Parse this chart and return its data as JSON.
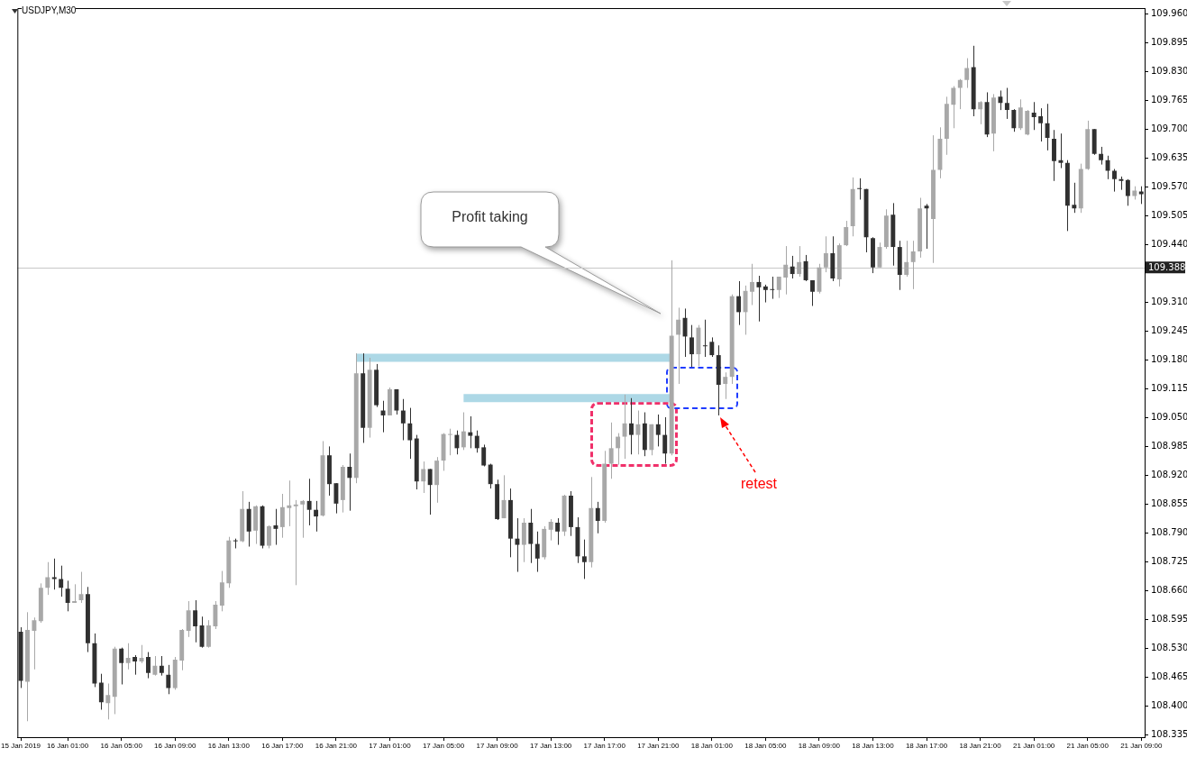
{
  "chart_data": {
    "type": "candlestick",
    "title": "USDJPY,M30",
    "categories": [
      "15 Jan 2019",
      null,
      null,
      null,
      null,
      null,
      null,
      "16 Jan 01:00",
      null,
      null,
      null,
      null,
      null,
      null,
      null,
      "16 Jan 05:00",
      null,
      null,
      null,
      null,
      null,
      null,
      null,
      "16 Jan 09:00",
      null,
      null,
      null,
      null,
      null,
      null,
      null,
      "16 Jan 13:00",
      null,
      null,
      null,
      null,
      null,
      null,
      null,
      "16 Jan 17:00",
      null,
      null,
      null,
      null,
      null,
      null,
      null,
      "16 Jan 21:00",
      null,
      null,
      null,
      null,
      null,
      null,
      null,
      "17 Jan 01:00",
      null,
      null,
      null,
      null,
      null,
      null,
      null,
      "17 Jan 05:00",
      null,
      null,
      null,
      null,
      null,
      null,
      null,
      "17 Jan 09:00",
      null,
      null,
      null,
      null,
      null,
      null,
      null,
      "17 Jan 13:00",
      null,
      null,
      null,
      null,
      null,
      null,
      null,
      "17 Jan 17:00",
      null,
      null,
      null,
      null,
      null,
      null,
      null,
      "17 Jan 21:00",
      null,
      null,
      null,
      null,
      null,
      null,
      null,
      "18 Jan 01:00",
      null,
      null,
      null,
      null,
      null,
      null,
      null,
      "18 Jan 05:00",
      null,
      null,
      null,
      null,
      null,
      null,
      null,
      "18 Jan 09:00",
      null,
      null,
      null,
      null,
      null,
      null,
      null,
      "18 Jan 13:00",
      null,
      null,
      null,
      null,
      null,
      null,
      null,
      "18 Jan 17:00",
      null,
      null,
      null,
      null,
      null,
      null,
      null,
      "18 Jan 21:00",
      null,
      null,
      null,
      null,
      null,
      null,
      null,
      "21 Jan 01:00",
      null,
      null,
      null,
      null,
      null,
      null,
      null,
      "21 Jan 05:00",
      null,
      null,
      null,
      null,
      null,
      null,
      null,
      "21 Jan 09:00"
    ],
    "ohlc": [
      [
        108.567,
        108.577,
        108.44,
        108.456
      ],
      [
        108.454,
        108.611,
        108.365,
        108.571
      ],
      [
        108.569,
        108.599,
        108.482,
        108.593
      ],
      [
        108.591,
        108.676,
        108.587,
        108.666
      ],
      [
        108.666,
        108.724,
        108.65,
        108.69
      ],
      [
        108.69,
        108.732,
        108.662,
        108.686
      ],
      [
        108.686,
        108.716,
        108.646,
        108.666
      ],
      [
        108.664,
        108.682,
        108.613,
        108.632
      ],
      [
        108.632,
        108.674,
        108.632,
        108.636
      ],
      [
        108.638,
        108.702,
        108.632,
        108.652
      ],
      [
        108.652,
        108.668,
        108.521,
        108.541
      ],
      [
        108.541,
        108.563,
        108.442,
        108.45
      ],
      [
        108.452,
        108.472,
        108.391,
        108.408
      ],
      [
        108.406,
        108.45,
        108.369,
        108.424
      ],
      [
        108.42,
        108.533,
        108.381,
        108.529
      ],
      [
        108.529,
        108.531,
        108.448,
        108.496
      ],
      [
        108.496,
        108.541,
        108.482,
        108.508
      ],
      [
        108.51,
        108.514,
        108.47,
        108.5
      ],
      [
        108.5,
        108.537,
        108.496,
        108.508
      ],
      [
        108.51,
        108.521,
        108.462,
        108.474
      ],
      [
        108.47,
        108.512,
        108.468,
        108.49
      ],
      [
        108.49,
        108.512,
        108.468,
        108.474
      ],
      [
        108.47,
        108.492,
        108.426,
        108.44
      ],
      [
        108.44,
        108.51,
        108.436,
        108.504
      ],
      [
        108.502,
        108.573,
        108.48,
        108.571
      ],
      [
        108.569,
        108.636,
        108.555,
        108.615
      ],
      [
        108.615,
        108.638,
        108.543,
        108.579
      ],
      [
        108.581,
        108.601,
        108.531,
        108.533
      ],
      [
        108.533,
        108.593,
        108.531,
        108.581
      ],
      [
        108.579,
        108.636,
        108.573,
        108.628
      ],
      [
        108.626,
        108.704,
        108.613,
        108.678
      ],
      [
        108.676,
        108.781,
        108.666,
        108.773
      ],
      [
        108.773,
        108.777,
        108.755,
        108.771
      ],
      [
        108.771,
        108.884,
        108.769,
        108.844
      ],
      [
        108.844,
        108.86,
        108.759,
        108.793
      ],
      [
        108.795,
        108.852,
        108.765,
        108.85
      ],
      [
        108.85,
        108.852,
        108.755,
        108.761
      ],
      [
        108.761,
        108.807,
        108.755,
        108.805
      ],
      [
        108.807,
        108.844,
        108.763,
        108.799
      ],
      [
        108.803,
        108.878,
        108.779,
        108.848
      ],
      [
        108.846,
        108.908,
        108.805,
        108.852
      ],
      [
        108.85,
        108.864,
        108.672,
        108.854
      ],
      [
        108.854,
        108.864,
        108.779,
        108.862
      ],
      [
        108.862,
        108.912,
        108.807,
        108.842
      ],
      [
        108.842,
        108.862,
        108.793,
        108.827
      ],
      [
        108.829,
        108.997,
        108.827,
        108.965
      ],
      [
        108.965,
        108.985,
        108.874,
        108.9
      ],
      [
        108.902,
        108.902,
        108.834,
        108.856
      ],
      [
        108.864,
        108.943,
        108.836,
        108.939
      ],
      [
        108.939,
        108.969,
        108.84,
        108.914
      ],
      [
        108.914,
        109.195,
        108.902,
        109.15
      ],
      [
        109.15,
        109.195,
        108.993,
        109.027
      ],
      [
        109.027,
        109.185,
        109.005,
        109.158
      ],
      [
        109.158,
        109.171,
        109.074,
        109.078
      ],
      [
        109.066,
        109.088,
        109.017,
        109.055
      ],
      [
        109.055,
        109.118,
        109.055,
        109.114
      ],
      [
        109.114,
        109.114,
        109.057,
        109.066
      ],
      [
        109.066,
        109.092,
        108.999,
        109.037
      ],
      [
        109.037,
        109.072,
        108.957,
        108.999
      ],
      [
        109.003,
        109.011,
        108.888,
        108.906
      ],
      [
        108.906,
        108.951,
        108.88,
        108.934
      ],
      [
        108.934,
        108.934,
        108.831,
        108.898
      ],
      [
        108.898,
        108.961,
        108.858,
        108.953
      ],
      [
        108.953,
        109.015,
        108.93,
        109.013
      ],
      [
        109.011,
        109.025,
        108.965,
        109.013
      ],
      [
        109.011,
        109.021,
        108.967,
        108.981
      ],
      [
        108.983,
        109.062,
        108.977,
        109.019
      ],
      [
        109.017,
        109.053,
        108.981,
        109.009
      ],
      [
        109.009,
        109.021,
        108.971,
        108.981
      ],
      [
        108.983,
        108.989,
        108.94,
        108.942
      ],
      [
        108.944,
        108.946,
        108.89,
        108.9
      ],
      [
        108.9,
        108.91,
        108.819,
        108.821
      ],
      [
        108.823,
        108.92,
        108.823,
        108.864
      ],
      [
        108.864,
        108.89,
        108.735,
        108.777
      ],
      [
        108.777,
        108.823,
        108.702,
        108.763
      ],
      [
        108.763,
        108.823,
        108.724,
        108.813
      ],
      [
        108.813,
        108.844,
        108.722,
        108.765
      ],
      [
        108.765,
        108.793,
        108.702,
        108.732
      ],
      [
        108.735,
        108.805,
        108.73,
        108.799
      ],
      [
        108.797,
        108.821,
        108.773,
        108.815
      ],
      [
        108.813,
        108.823,
        108.763,
        108.793
      ],
      [
        108.793,
        108.876,
        108.783,
        108.874
      ],
      [
        108.874,
        108.884,
        108.783,
        108.803
      ],
      [
        108.803,
        108.825,
        108.722,
        108.737
      ],
      [
        108.737,
        108.775,
        108.686,
        108.724
      ],
      [
        108.724,
        108.916,
        108.712,
        108.846
      ],
      [
        108.846,
        108.86,
        108.789,
        108.817
      ],
      [
        108.817,
        108.975,
        108.813,
        108.946
      ],
      [
        108.946,
        109.039,
        108.912,
        108.981
      ],
      [
        108.981,
        109.015,
        108.944,
        109.007
      ],
      [
        109.007,
        109.102,
        108.957,
        109.037
      ],
      [
        109.037,
        109.094,
        108.967,
        109.011
      ],
      [
        109.011,
        109.066,
        108.967,
        109.035
      ],
      [
        109.037,
        109.062,
        108.963,
        108.977
      ],
      [
        108.977,
        109.035,
        108.965,
        109.035
      ],
      [
        109.035,
        109.057,
        108.985,
        109.011
      ],
      [
        109.011,
        109.051,
        108.946,
        108.969
      ],
      [
        108.969,
        109.405,
        108.965,
        109.235
      ],
      [
        109.237,
        109.298,
        109.126,
        109.271
      ],
      [
        109.275,
        109.296,
        109.187,
        109.233
      ],
      [
        109.231,
        109.259,
        109.164,
        109.193
      ],
      [
        109.193,
        109.259,
        109.166,
        109.253
      ],
      [
        109.213,
        109.271,
        109.187,
        109.211
      ],
      [
        109.221,
        109.231,
        109.187,
        109.191
      ],
      [
        109.191,
        109.213,
        109.055,
        109.124
      ],
      [
        109.126,
        109.152,
        109.092,
        109.142
      ],
      [
        109.142,
        109.328,
        109.126,
        109.324
      ],
      [
        109.324,
        109.358,
        109.259,
        109.288
      ],
      [
        109.288,
        109.348,
        109.237,
        109.336
      ],
      [
        109.334,
        109.397,
        109.304,
        109.356
      ],
      [
        109.356,
        109.37,
        109.267,
        109.344
      ],
      [
        109.346,
        109.35,
        109.31,
        109.338
      ],
      [
        109.34,
        109.368,
        109.318,
        109.338
      ],
      [
        109.338,
        109.368,
        109.32,
        109.368
      ],
      [
        109.366,
        109.437,
        109.328,
        109.395
      ],
      [
        109.391,
        109.415,
        109.364,
        109.374
      ],
      [
        109.374,
        109.437,
        109.368,
        109.401
      ],
      [
        109.403,
        109.417,
        109.358,
        109.36
      ],
      [
        109.36,
        109.36,
        109.302,
        109.334
      ],
      [
        109.334,
        109.397,
        109.33,
        109.389
      ],
      [
        109.389,
        109.459,
        109.378,
        109.421
      ],
      [
        109.421,
        109.459,
        109.358,
        109.364
      ],
      [
        109.362,
        109.443,
        109.346,
        109.439
      ],
      [
        109.439,
        109.494,
        109.437,
        109.48
      ],
      [
        109.482,
        109.592,
        109.459,
        109.566
      ],
      [
        109.568,
        109.59,
        109.542,
        109.566
      ],
      [
        109.566,
        109.566,
        109.423,
        109.457
      ],
      [
        109.455,
        109.457,
        109.376,
        109.389
      ],
      [
        109.389,
        109.445,
        109.389,
        109.435
      ],
      [
        109.435,
        109.52,
        109.431,
        109.506
      ],
      [
        109.508,
        109.534,
        109.393,
        109.435
      ],
      [
        109.435,
        109.449,
        109.338,
        109.372
      ],
      [
        109.372,
        109.449,
        109.368,
        109.401
      ],
      [
        109.401,
        109.449,
        109.34,
        109.425
      ],
      [
        109.425,
        109.546,
        109.411,
        109.522
      ],
      [
        109.528,
        109.532,
        109.431,
        109.522
      ],
      [
        109.498,
        109.687,
        109.399,
        109.609
      ],
      [
        109.609,
        109.705,
        109.59,
        109.679
      ],
      [
        109.679,
        109.774,
        109.643,
        109.758
      ],
      [
        109.756,
        109.798,
        109.703,
        109.794
      ],
      [
        109.794,
        109.814,
        109.746,
        109.812
      ],
      [
        109.812,
        109.861,
        109.794,
        109.839
      ],
      [
        109.841,
        109.889,
        109.73,
        109.746
      ],
      [
        109.746,
        109.764,
        109.712,
        109.762
      ],
      [
        109.762,
        109.784,
        109.683,
        109.689
      ],
      [
        109.691,
        109.78,
        109.651,
        109.772
      ],
      [
        109.774,
        109.788,
        109.744,
        109.76
      ],
      [
        109.76,
        109.794,
        109.724,
        109.744
      ],
      [
        109.744,
        109.746,
        109.695,
        109.703
      ],
      [
        109.703,
        109.768,
        109.699,
        109.75
      ],
      [
        109.689,
        109.744,
        109.687,
        109.742
      ],
      [
        109.738,
        109.762,
        109.699,
        109.728
      ],
      [
        109.73,
        109.748,
        109.673,
        109.714
      ],
      [
        109.714,
        109.758,
        109.653,
        109.681
      ],
      [
        109.679,
        109.699,
        109.584,
        109.629
      ],
      [
        109.631,
        109.691,
        109.613,
        109.625
      ],
      [
        109.625,
        109.631,
        109.471,
        109.528
      ],
      [
        109.53,
        109.58,
        109.512,
        109.522
      ],
      [
        109.522,
        109.623,
        109.512,
        109.611
      ],
      [
        109.611,
        109.72,
        109.609,
        109.701
      ],
      [
        109.701,
        109.701,
        109.643,
        109.645
      ],
      [
        109.645,
        109.661,
        109.621,
        109.631
      ],
      [
        109.631,
        109.641,
        109.588,
        109.607
      ],
      [
        109.607,
        109.611,
        109.56,
        109.588
      ],
      [
        109.588,
        109.594,
        109.564,
        109.584
      ],
      [
        109.586,
        109.588,
        109.528,
        109.55
      ],
      [
        109.55,
        109.572,
        109.542,
        109.562
      ],
      [
        109.56,
        109.572,
        109.532,
        109.554
      ]
    ],
    "colors": [
      "#303030",
      "#a8a8a8",
      "#a8a8a8",
      "#a8a8a8",
      "#a8a8a8",
      "#303030",
      "#303030",
      "#303030",
      "#a8a8a8",
      "#a8a8a8",
      "#303030",
      "#303030",
      "#303030",
      "#a8a8a8",
      "#a8a8a8",
      "#303030",
      "#a8a8a8",
      "#303030",
      "#a8a8a8",
      "#303030",
      "#a8a8a8",
      "#303030",
      "#303030",
      "#a8a8a8",
      "#a8a8a8",
      "#a8a8a8",
      "#303030",
      "#303030",
      "#a8a8a8",
      "#a8a8a8",
      "#a8a8a8",
      "#a8a8a8",
      "#303030",
      "#a8a8a8",
      "#303030",
      "#a8a8a8",
      "#303030",
      "#a8a8a8",
      "#303030",
      "#a8a8a8",
      "#a8a8a8",
      "#a8a8a8",
      "#a8a8a8",
      "#303030",
      "#303030",
      "#a8a8a8",
      "#303030",
      "#303030",
      "#a8a8a8",
      "#303030",
      "#a8a8a8",
      "#303030",
      "#a8a8a8",
      "#303030",
      "#303030",
      "#a8a8a8",
      "#303030",
      "#303030",
      "#303030",
      "#303030",
      "#a8a8a8",
      "#303030",
      "#a8a8a8",
      "#a8a8a8",
      "#a8a8a8",
      "#303030",
      "#a8a8a8",
      "#303030",
      "#303030",
      "#303030",
      "#303030",
      "#303030",
      "#a8a8a8",
      "#303030",
      "#303030",
      "#a8a8a8",
      "#303030",
      "#303030",
      "#a8a8a8",
      "#a8a8a8",
      "#303030",
      "#a8a8a8",
      "#303030",
      "#303030",
      "#303030",
      "#a8a8a8",
      "#303030",
      "#a8a8a8",
      "#a8a8a8",
      "#a8a8a8",
      "#a8a8a8",
      "#303030",
      "#a8a8a8",
      "#303030",
      "#a8a8a8",
      "#303030",
      "#303030",
      "#a8a8a8",
      "#a8a8a8",
      "#303030",
      "#303030",
      "#a8a8a8",
      "#303030",
      "#303030",
      "#303030",
      "#a8a8a8",
      "#a8a8a8",
      "#303030",
      "#a8a8a8",
      "#a8a8a8",
      "#303030",
      "#303030",
      "#303030",
      "#a8a8a8",
      "#a8a8a8",
      "#303030",
      "#a8a8a8",
      "#303030",
      "#303030",
      "#a8a8a8",
      "#a8a8a8",
      "#303030",
      "#a8a8a8",
      "#a8a8a8",
      "#a8a8a8",
      "#303030",
      "#303030",
      "#303030",
      "#a8a8a8",
      "#a8a8a8",
      "#303030",
      "#303030",
      "#a8a8a8",
      "#a8a8a8",
      "#a8a8a8",
      "#303030",
      "#a8a8a8",
      "#a8a8a8",
      "#a8a8a8",
      "#a8a8a8",
      "#a8a8a8",
      "#a8a8a8",
      "#303030",
      "#a8a8a8",
      "#303030",
      "#a8a8a8",
      "#303030",
      "#303030",
      "#303030",
      "#a8a8a8",
      "#a8a8a8",
      "#303030",
      "#303030",
      "#303030",
      "#303030",
      "#303030",
      "#303030",
      "#303030",
      "#a8a8a8",
      "#a8a8a8",
      "#303030",
      "#303030",
      "#303030",
      "#303030",
      "#303030",
      "#303030",
      "#a8a8a8",
      "#303030"
    ],
    "series": [
      {
        "type": "line",
        "color": "#add8e6",
        "values": [
          null,
          null,
          null,
          null,
          null,
          null,
          null,
          null,
          null,
          null,
          null,
          null,
          null,
          null,
          null,
          null,
          null,
          null,
          null,
          null,
          null,
          null,
          null,
          null,
          null,
          null,
          null,
          null,
          null,
          null,
          null,
          null,
          null,
          null,
          null,
          null,
          null,
          null,
          null,
          null,
          null,
          null,
          null,
          null,
          null,
          null,
          null,
          null,
          null,
          null,
          109.185,
          109.185,
          109.185,
          109.185,
          109.185,
          109.185,
          109.185,
          109.185,
          109.185,
          109.185,
          109.185,
          109.185,
          109.185,
          109.185,
          109.185,
          109.185,
          109.185,
          109.185,
          109.185,
          109.185,
          109.185,
          109.185,
          109.185,
          109.185,
          109.185,
          109.185,
          109.185,
          109.185,
          109.185,
          109.185,
          109.185,
          109.185,
          109.185,
          109.185,
          109.185,
          109.185,
          109.185,
          109.185,
          109.185,
          109.185,
          109.185,
          109.185,
          109.185,
          109.185,
          109.185,
          109.185,
          109.185,
          109.185,
          null,
          null,
          null,
          null,
          null,
          null,
          null,
          null,
          null,
          null,
          null,
          null,
          null,
          null,
          null,
          null,
          null,
          null,
          null,
          null,
          null,
          null,
          null,
          null,
          null,
          null,
          null,
          null,
          null,
          null,
          null,
          null,
          null,
          null,
          null,
          null,
          null,
          null,
          null,
          null,
          null,
          null,
          null,
          null,
          null,
          null,
          null,
          null,
          null,
          null,
          null,
          null,
          null,
          null,
          null,
          null,
          null,
          null,
          null,
          null,
          null,
          null,
          null,
          null,
          null,
          null,
          null,
          null,
          null,
          null
        ]
      },
      {
        "type": "line",
        "color": "#add8e6",
        "values": [
          null,
          null,
          null,
          null,
          null,
          null,
          null,
          null,
          null,
          null,
          null,
          null,
          null,
          null,
          null,
          null,
          null,
          null,
          null,
          null,
          null,
          null,
          null,
          null,
          null,
          null,
          null,
          null,
          null,
          null,
          null,
          null,
          null,
          null,
          null,
          null,
          null,
          null,
          null,
          null,
          null,
          null,
          null,
          null,
          null,
          null,
          null,
          null,
          null,
          null,
          null,
          null,
          null,
          null,
          null,
          null,
          null,
          null,
          null,
          null,
          null,
          null,
          null,
          null,
          null,
          null,
          109.094,
          109.094,
          109.094,
          109.094,
          109.094,
          109.094,
          109.094,
          109.094,
          109.094,
          109.094,
          109.094,
          109.094,
          109.094,
          109.094,
          109.094,
          109.094,
          109.094,
          109.094,
          109.094,
          109.094,
          109.094,
          109.094,
          109.094,
          109.094,
          109.094,
          109.094,
          109.094,
          109.094,
          109.094,
          109.094,
          109.094,
          109.094,
          null,
          null,
          null,
          null,
          null,
          null,
          null,
          null,
          null,
          null,
          null,
          null,
          null,
          null,
          null,
          null,
          null,
          null,
          null,
          null,
          null,
          null,
          null,
          null,
          null,
          null,
          null,
          null,
          null,
          null,
          null,
          null,
          null,
          null,
          null,
          null,
          null,
          null,
          null,
          null,
          null,
          null,
          null,
          null,
          null,
          null,
          null,
          null,
          null,
          null,
          null,
          null,
          null,
          null,
          null,
          null,
          null,
          null,
          null,
          null,
          null,
          null,
          null,
          null,
          null,
          null,
          null,
          null,
          null,
          null
        ]
      }
    ],
    "marker": "none",
    "ylim": [
      108.329,
      109.974
    ],
    "yticks": [
      108.335,
      {
        "value": 108.4,
        "label": "108.400"
      },
      108.465,
      {
        "value": 108.53,
        "label": "108.530"
      },
      108.595,
      {
        "value": 108.66,
        "label": "108.660"
      },
      108.725,
      {
        "value": 108.79,
        "label": "108.790"
      },
      108.855,
      {
        "value": 108.92,
        "label": "108.920"
      },
      108.985,
      {
        "value": 109.05,
        "label": "109.050"
      },
      109.115,
      {
        "value": 109.18,
        "label": "109.180"
      },
      109.245,
      {
        "value": 109.31,
        "label": "109.310"
      },
      {
        "value": 109.44,
        "label": "109.440"
      },
      109.505,
      {
        "value": 109.57,
        "label": "109.570"
      },
      109.635,
      {
        "value": 109.7,
        "label": "109.700"
      },
      109.765,
      {
        "value": 109.83,
        "label": "109.830"
      },
      109.895,
      {
        "value": 109.96,
        "label": "109.960"
      }
    ],
    "ref_lines": [
      {
        "axis": "y",
        "value": 109.388,
        "label": "109.388",
        "color": "#c8c8c8"
      }
    ],
    "annotations": [
      "Profit taking",
      "retest"
    ],
    "grid": false,
    "legend": false
  }
}
